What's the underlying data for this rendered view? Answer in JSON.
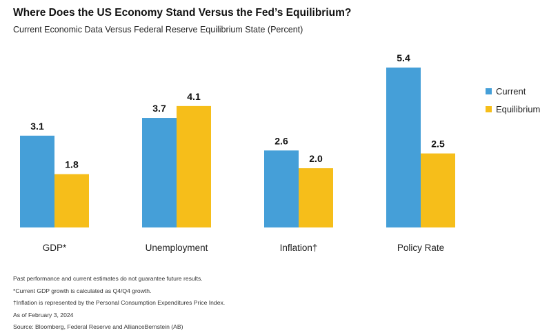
{
  "title": "Where Does the US Economy Stand Versus the Fed’s Equilibrium?",
  "subtitle": "Current Economic Data Versus Federal Reserve Equilibrium State (Percent)",
  "colors": {
    "current": "#459fd8",
    "equilibrium": "#f6be1a"
  },
  "chart_data": {
    "type": "bar",
    "title": "Where Does the US Economy Stand Versus the Fed’s Equilibrium?",
    "subtitle": "Current Economic Data Versus Federal Reserve Equilibrium State (Percent)",
    "categories": [
      "GDP*",
      "Unemployment",
      "Inflation†",
      "Policy Rate"
    ],
    "series": [
      {
        "name": "Current",
        "values": [
          3.1,
          3.7,
          2.6,
          5.4
        ]
      },
      {
        "name": "Equilibrium",
        "values": [
          1.8,
          4.1,
          2.0,
          2.5
        ]
      }
    ],
    "value_labels": [
      [
        "3.1",
        "3.7",
        "2.6",
        "5.4"
      ],
      [
        "1.8",
        "4.1",
        "2.0",
        "2.5"
      ]
    ],
    "ylim": [
      0,
      5.4
    ],
    "grid": false,
    "legend_position": "right"
  },
  "legend": {
    "current": "Current",
    "equilibrium": "Equilibrium"
  },
  "notes": [
    "Past performance and current estimates do not guarantee future results.",
    "*Current GDP growth is calculated as Q4/Q4 growth.",
    "†Inflation is represented by the Personal Consumption Expenditures Price Index.",
    "As of February 3, 2024",
    "Source: Bloomberg, Federal Reserve and AllianceBernstein (AB)"
  ]
}
